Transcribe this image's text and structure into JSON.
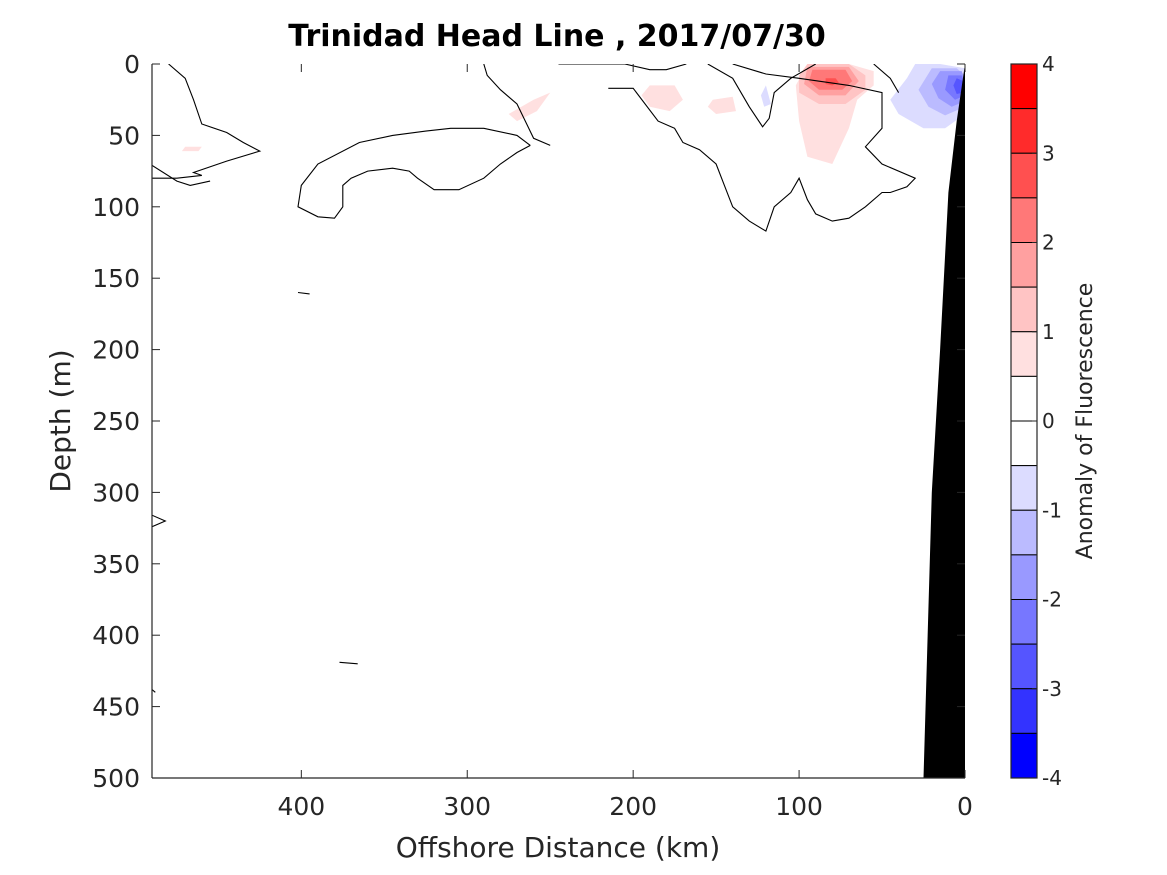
{
  "chart_data": {
    "type": "contour",
    "title": "Trinidad Head Line , 2017/07/30",
    "xlabel": "Offshore Distance (km)",
    "ylabel": "Depth (m)",
    "xlim": [
      490,
      0
    ],
    "ylim": [
      0,
      500
    ],
    "x_reversed": true,
    "y_reversed": true,
    "xticks": [
      400,
      300,
      200,
      100,
      0
    ],
    "yticks": [
      0,
      50,
      100,
      150,
      200,
      250,
      300,
      350,
      400,
      450,
      500
    ],
    "colorbar": {
      "label": "Anomaly of Fluorescence",
      "range": [
        -4,
        4
      ],
      "ticks": [
        4,
        3,
        2,
        1,
        0,
        -1,
        -2,
        -3,
        -4
      ],
      "levels": [
        {
          "from": 3.5,
          "to": 4.0,
          "color": "#ff0000"
        },
        {
          "from": 3.0,
          "to": 3.5,
          "color": "#ff2b2b"
        },
        {
          "from": 2.5,
          "to": 3.0,
          "color": "#ff5050"
        },
        {
          "from": 2.0,
          "to": 2.5,
          "color": "#ff7878"
        },
        {
          "from": 1.5,
          "to": 2.0,
          "color": "#ffa0a0"
        },
        {
          "from": 1.0,
          "to": 1.5,
          "color": "#ffc4c4"
        },
        {
          "from": 0.5,
          "to": 1.0,
          "color": "#ffe0e0"
        },
        {
          "from": 0.0,
          "to": 0.5,
          "color": "#ffffff"
        },
        {
          "from": -0.5,
          "to": 0.0,
          "color": "#ffffff"
        },
        {
          "from": -1.0,
          "to": -0.5,
          "color": "#dcdcff"
        },
        {
          "from": -1.5,
          "to": -1.0,
          "color": "#bbbbff"
        },
        {
          "from": -2.0,
          "to": -1.5,
          "color": "#9999ff"
        },
        {
          "from": -2.5,
          "to": -2.0,
          "color": "#7777ff"
        },
        {
          "from": -3.0,
          "to": -2.5,
          "color": "#5555ff"
        },
        {
          "from": -3.5,
          "to": -3.0,
          "color": "#3333ff"
        },
        {
          "from": -4.0,
          "to": -3.5,
          "color": "#0000ff"
        }
      ]
    },
    "zero_contour_lines": [
      [
        [
          480,
          0
        ],
        [
          470,
          10
        ],
        [
          465,
          25
        ],
        [
          460,
          42
        ],
        [
          445,
          48
        ],
        [
          435,
          55
        ],
        [
          425,
          61
        ],
        [
          445,
          68
        ],
        [
          465,
          76
        ],
        [
          460,
          78
        ],
        [
          475,
          80
        ],
        [
          490,
          80
        ]
      ],
      [
        [
          490,
          71
        ],
        [
          475,
          82
        ],
        [
          467,
          85
        ],
        [
          455,
          82
        ]
      ],
      [
        [
          245,
          0
        ],
        [
          205,
          0
        ],
        [
          190,
          4
        ],
        [
          180,
          4
        ],
        [
          168,
          0
        ]
      ],
      [
        [
          290,
          0
        ],
        [
          288,
          8
        ],
        [
          280,
          18
        ],
        [
          270,
          28
        ],
        [
          265,
          40
        ],
        [
          260,
          52
        ],
        [
          250,
          57
        ],
        [
          250,
          57
        ]
      ],
      [
        [
          262,
          57
        ],
        [
          270,
          50
        ],
        [
          290,
          45
        ],
        [
          310,
          45
        ],
        [
          325,
          47
        ],
        [
          345,
          50
        ],
        [
          365,
          55
        ],
        [
          390,
          70
        ],
        [
          400,
          85
        ],
        [
          402,
          100
        ],
        [
          390,
          107
        ],
        [
          380,
          108
        ],
        [
          375,
          100
        ],
        [
          375,
          85
        ],
        [
          370,
          80
        ],
        [
          360,
          75
        ],
        [
          345,
          73
        ],
        [
          335,
          75
        ],
        [
          330,
          80
        ],
        [
          320,
          88
        ],
        [
          305,
          88
        ],
        [
          290,
          80
        ],
        [
          280,
          70
        ],
        [
          270,
          62
        ],
        [
          262,
          57
        ]
      ],
      [
        [
          215,
          17
        ],
        [
          200,
          17
        ],
        [
          185,
          40
        ],
        [
          175,
          45
        ],
        [
          170,
          55
        ],
        [
          160,
          60
        ],
        [
          150,
          70
        ],
        [
          145,
          85
        ],
        [
          140,
          100
        ],
        [
          130,
          110
        ],
        [
          120,
          117
        ],
        [
          115,
          100
        ],
        [
          105,
          90
        ],
        [
          100,
          80
        ],
        [
          95,
          95
        ],
        [
          90,
          105
        ],
        [
          80,
          110
        ],
        [
          70,
          108
        ],
        [
          60,
          100
        ],
        [
          50,
          90
        ],
        [
          45,
          90
        ],
        [
          35,
          86
        ],
        [
          30,
          80
        ],
        [
          50,
          70
        ],
        [
          60,
          58
        ],
        [
          50,
          45
        ],
        [
          50,
          20
        ],
        [
          70,
          15
        ],
        [
          100,
          10
        ],
        [
          120,
          7
        ],
        [
          140,
          0
        ]
      ],
      [
        [
          155,
          0
        ],
        [
          140,
          10
        ],
        [
          130,
          30
        ],
        [
          122,
          44
        ],
        [
          118,
          38
        ],
        [
          115,
          20
        ],
        [
          105,
          10
        ],
        [
          90,
          0
        ]
      ],
      [
        [
          55,
          0
        ],
        [
          45,
          10
        ],
        [
          40,
          20
        ]
      ],
      [
        [
          490,
          316
        ],
        [
          482,
          320
        ],
        [
          490,
          324
        ]
      ],
      [
        [
          402,
          160
        ],
        [
          395,
          161
        ]
      ],
      [
        [
          377,
          419
        ],
        [
          366,
          420
        ]
      ],
      [
        [
          490,
          438
        ],
        [
          488,
          440
        ]
      ]
    ],
    "filled_anomalies": [
      {
        "level": 0.75,
        "color": "#ffe0e0",
        "points": [
          [
            95,
            0
          ],
          [
            70,
            0
          ],
          [
            55,
            5
          ],
          [
            55,
            15
          ],
          [
            65,
            25
          ],
          [
            70,
            45
          ],
          [
            80,
            70
          ],
          [
            95,
            65
          ],
          [
            100,
            40
          ],
          [
            102,
            15
          ]
        ]
      },
      {
        "level": 1.25,
        "color": "#ffc4c4",
        "points": [
          [
            95,
            0
          ],
          [
            70,
            0
          ],
          [
            60,
            8
          ],
          [
            60,
            18
          ],
          [
            72,
            28
          ],
          [
            88,
            28
          ],
          [
            100,
            20
          ],
          [
            100,
            8
          ]
        ]
      },
      {
        "level": 1.75,
        "color": "#ffa0a0",
        "points": [
          [
            95,
            2
          ],
          [
            70,
            2
          ],
          [
            64,
            12
          ],
          [
            72,
            22
          ],
          [
            88,
            22
          ],
          [
            97,
            14
          ]
        ]
      },
      {
        "level": 2.25,
        "color": "#ff7878",
        "points": [
          [
            92,
            4
          ],
          [
            72,
            4
          ],
          [
            68,
            12
          ],
          [
            74,
            18
          ],
          [
            88,
            18
          ],
          [
            94,
            12
          ]
        ]
      },
      {
        "level": 2.75,
        "color": "#ff5050",
        "points": [
          [
            84,
            10
          ],
          [
            78,
            10
          ],
          [
            76,
            13
          ],
          [
            80,
            15
          ],
          [
            84,
            14
          ]
        ]
      },
      {
        "level": 0.75,
        "color": "#ffe0e0",
        "points": [
          [
            275,
            35
          ],
          [
            260,
            25
          ],
          [
            250,
            20
          ],
          [
            258,
            33
          ],
          [
            270,
            40
          ]
        ]
      },
      {
        "level": 0.75,
        "color": "#ffe0e0",
        "points": [
          [
            190,
            15
          ],
          [
            175,
            15
          ],
          [
            170,
            25
          ],
          [
            178,
            33
          ],
          [
            190,
            30
          ],
          [
            195,
            22
          ]
        ]
      },
      {
        "level": 0.75,
        "color": "#ffe0e0",
        "points": [
          [
            152,
            25
          ],
          [
            140,
            23
          ],
          [
            138,
            33
          ],
          [
            150,
            35
          ],
          [
            155,
            30
          ]
        ]
      },
      {
        "level": 0.75,
        "color": "#ffe0e0",
        "points": [
          [
            470,
            58
          ],
          [
            460,
            58
          ],
          [
            462,
            61
          ],
          [
            472,
            61
          ]
        ]
      },
      {
        "level": -0.75,
        "color": "#dcdcff",
        "points": [
          [
            120,
            15
          ],
          [
            117,
            28
          ],
          [
            121,
            30
          ],
          [
            123,
            22
          ]
        ]
      },
      {
        "level": -0.75,
        "color": "#dcdcff",
        "points": [
          [
            30,
            0
          ],
          [
            15,
            0
          ],
          [
            0,
            3
          ],
          [
            0,
            35
          ],
          [
            12,
            45
          ],
          [
            25,
            45
          ],
          [
            40,
            35
          ],
          [
            45,
            25
          ],
          [
            35,
            10
          ]
        ]
      },
      {
        "level": -1.25,
        "color": "#bbbbff",
        "points": [
          [
            20,
            3
          ],
          [
            5,
            3
          ],
          [
            0,
            8
          ],
          [
            0,
            30
          ],
          [
            12,
            36
          ],
          [
            22,
            30
          ],
          [
            28,
            18
          ]
        ]
      },
      {
        "level": -1.75,
        "color": "#9999ff",
        "points": [
          [
            15,
            5
          ],
          [
            2,
            5
          ],
          [
            0,
            12
          ],
          [
            0,
            26
          ],
          [
            8,
            30
          ],
          [
            16,
            24
          ],
          [
            20,
            14
          ]
        ]
      },
      {
        "level": -2.25,
        "color": "#7777ff",
        "points": [
          [
            10,
            8
          ],
          [
            2,
            8
          ],
          [
            0,
            14
          ],
          [
            0,
            22
          ],
          [
            6,
            25
          ],
          [
            12,
            18
          ]
        ]
      },
      {
        "level": -2.75,
        "color": "#5555ff",
        "points": [
          [
            5,
            10
          ],
          [
            1,
            12
          ],
          [
            1,
            20
          ],
          [
            5,
            21
          ],
          [
            7,
            15
          ]
        ]
      }
    ],
    "bathymetry": {
      "color": "#000000",
      "seafloor": [
        [
          0,
          0
        ],
        [
          5,
          40
        ],
        [
          10,
          90
        ],
        [
          15,
          200
        ],
        [
          20,
          300
        ],
        [
          25,
          500
        ]
      ]
    }
  }
}
